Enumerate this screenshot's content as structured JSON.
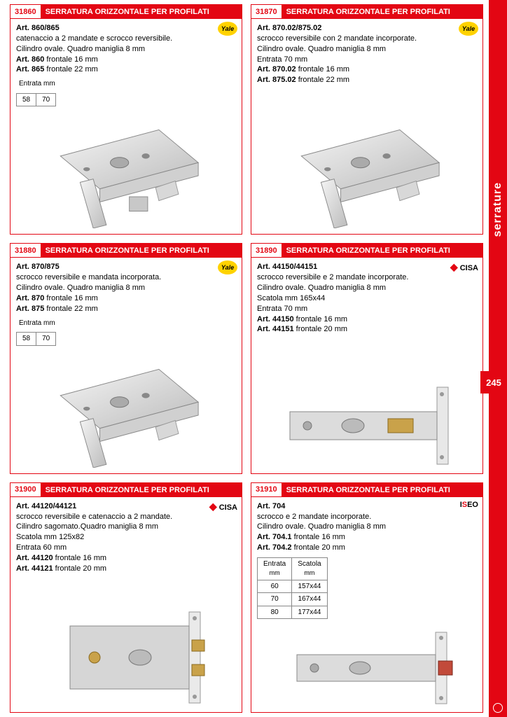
{
  "sidebar": {
    "label": "serrature",
    "page_num": "245"
  },
  "cards": [
    {
      "code": "31860",
      "title": "SERRATURA ORIZZONTALE PER PROFILATI",
      "brand": "yale",
      "art": "Art. 860/865",
      "lines": [
        "catenaccio a 2 mandate e scrocco reversibile.",
        "Cilindro ovale. Quadro maniglia 8 mm"
      ],
      "bold_lines": [
        {
          "b": "Art. 860",
          "rest": "  frontale 16 mm"
        },
        {
          "b": "Art. 865",
          "rest": "  frontale 22 mm"
        }
      ],
      "table": {
        "head": [
          "Entrata mm"
        ],
        "rows": [
          [
            "58",
            "70"
          ]
        ]
      },
      "img": "angled-latch"
    },
    {
      "code": "31870",
      "title": "SERRATURA ORIZZONTALE PER PROFILATI",
      "brand": "yale",
      "art": "Art. 870.02/875.02",
      "lines": [
        "scrocco reversibile con 2 mandate incorporate.",
        "Cilindro ovale. Quadro maniglia 8 mm",
        "Entrata 70 mm"
      ],
      "bold_lines": [
        {
          "b": "Art. 870.02",
          "rest": "  frontale 16 mm"
        },
        {
          "b": "Art. 875.02",
          "rest": "  frontale 22 mm"
        }
      ],
      "img": "angled-simple"
    },
    {
      "code": "31880",
      "title": "SERRATURA ORIZZONTALE PER PROFILATI",
      "brand": "yale",
      "art": "Art. 870/875",
      "lines": [
        "scrocco reversibile e mandata incorporata.",
        "Cilindro ovale. Quadro maniglia 8 mm"
      ],
      "bold_lines": [
        {
          "b": "Art. 870",
          "rest": "  frontale 16 mm"
        },
        {
          "b": "Art. 875",
          "rest": "  frontale 22 mm"
        }
      ],
      "table": {
        "head": [
          "Entrata mm"
        ],
        "rows": [
          [
            "58",
            "70"
          ]
        ]
      },
      "img": "angled-simple"
    },
    {
      "code": "31890",
      "title": "SERRATURA ORIZZONTALE PER PROFILATI",
      "brand": "cisa",
      "art": "Art. 44150/44151",
      "lines": [
        "scrocco reversibile e 2 mandate incorporate.",
        "Cilindro ovale. Quadro maniglia 8 mm",
        "Scatola mm 165x44",
        "Entrata 70 mm"
      ],
      "bold_lines": [
        {
          "b": "Art. 44150",
          "rest": " frontale 16 mm"
        },
        {
          "b": "Art. 44151",
          "rest": "  frontale 20 mm"
        }
      ],
      "img": "flat-long-brass"
    },
    {
      "code": "31900",
      "title": "SERRATURA ORIZZONTALE PER PROFILATI",
      "brand": "cisa",
      "art": "Art. 44120/44121",
      "lines": [
        "scrocco reversibile e catenaccio a 2 mandate.",
        "Cilindro sagomato.Quadro maniglia 8 mm",
        "Scatola mm 125x82",
        "Entrata 60 mm"
      ],
      "bold_lines": [
        {
          "b": "Art. 44120",
          "rest": "  frontale 16 mm"
        },
        {
          "b": "Art. 44121",
          "rest": " frontale 20 mm"
        }
      ],
      "img": "tall-box"
    },
    {
      "code": "31910",
      "title": "SERRATURA ORIZZONTALE PER PROFILATI",
      "brand": "iseo",
      "art": "Art. 704",
      "lines": [
        "scrocco e 2 mandate incorporate.",
        "Cilindro ovale. Quadro maniglia 8 mm"
      ],
      "bold_lines": [
        {
          "b": "Art. 704.1",
          "rest": "  frontale 16 mm"
        },
        {
          "b": "Art. 704.2",
          "rest": " frontale 20 mm"
        }
      ],
      "table2": {
        "head": [
          "Entrata",
          "Scatola"
        ],
        "sub": [
          "mm",
          "mm"
        ],
        "rows": [
          [
            "60",
            "157x44"
          ],
          [
            "70",
            "167x44"
          ],
          [
            "80",
            "177x44"
          ]
        ]
      },
      "img": "flat-long-iseo"
    }
  ]
}
